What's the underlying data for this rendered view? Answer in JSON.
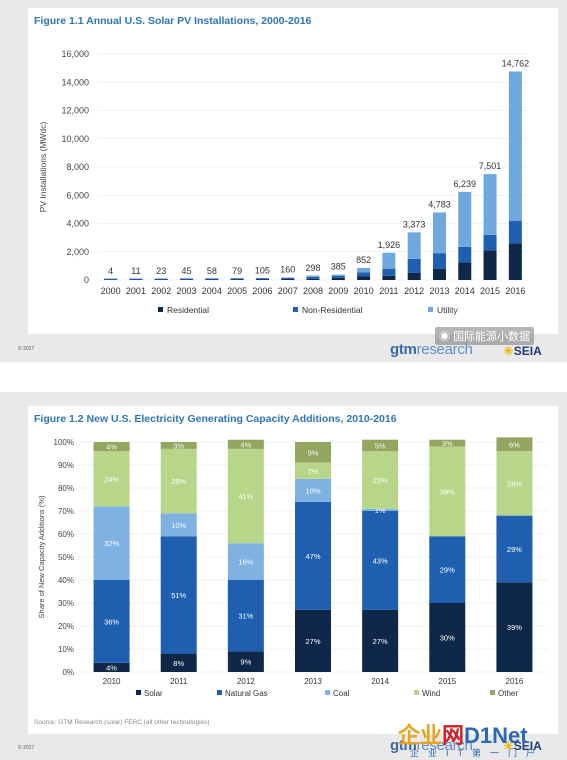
{
  "colors": {
    "residential": "#0f2748",
    "non_residential": "#1f5fb0",
    "utility": "#6fa8dc",
    "solar": "#0f2748",
    "natural_gas": "#1f5fb0",
    "coal": "#7fb2e0",
    "wind": "#b8d68a",
    "other": "#93a55f",
    "title_blue": "#2e75b6"
  },
  "figure1": {
    "title": "Figure 1.1 Annual U.S. Solar PV Installations, 2000-2016",
    "copyright": "© 2017",
    "legend": [
      "Residential",
      "Non-Residential",
      "Utility"
    ]
  },
  "figure2": {
    "title": "Figure 1.2  New U.S. Electricity Generating Capacity Additions, 2010-2016",
    "source": "Source: GTM Research (solar) FERC (all other technologies)",
    "copyright": "© 2017",
    "legend": [
      "Solar",
      "Natural Gas",
      "Coal",
      "Wind",
      "Other"
    ]
  },
  "logos": {
    "gtm_bold": "gtm",
    "gtm_thin": "research",
    "seia": "SEIA"
  },
  "watermarks": {
    "weibo": "国际能源小数据",
    "brand_a": "企业",
    "brand_b": "网",
    "brand_c": "D1Net",
    "brand_sub": "企业IT第一门户"
  },
  "chart_data": [
    {
      "type": "bar",
      "stacked": true,
      "title": "Figure 1.1 Annual U.S. Solar PV Installations, 2000-2016",
      "ylabel": "PV Installations (MWdc)",
      "xlabel": "",
      "ylim": [
        0,
        16000
      ],
      "yticks": [
        "0",
        "2,000",
        "4,000",
        "6,000",
        "8,000",
        "10,000",
        "12,000",
        "14,000",
        "16,000"
      ],
      "grid": true,
      "legend_position": "bottom",
      "categories": [
        "2000",
        "2001",
        "2002",
        "2003",
        "2004",
        "2005",
        "2006",
        "2007",
        "2008",
        "2009",
        "2010",
        "2011",
        "2012",
        "2013",
        "2014",
        "2015",
        "2016"
      ],
      "totals": [
        4,
        11,
        23,
        45,
        58,
        79,
        105,
        160,
        298,
        385,
        852,
        1926,
        3373,
        4783,
        6239,
        7501,
        14762
      ],
      "total_labels": [
        "4",
        "11",
        "23",
        "45",
        "58",
        "79",
        "105",
        "160",
        "298",
        "385",
        "852",
        "1,926",
        "3,373",
        "4,783",
        "6,239",
        "7,501",
        "14,762"
      ],
      "series": [
        {
          "name": "Residential",
          "values": [
            2,
            5,
            10,
            20,
            25,
            35,
            45,
            60,
            80,
            150,
            250,
            300,
            500,
            800,
            1250,
            2100,
            2600
          ]
        },
        {
          "name": "Non-Residential",
          "values": [
            2,
            6,
            13,
            25,
            33,
            44,
            60,
            100,
            150,
            150,
            300,
            500,
            1000,
            1100,
            1100,
            1100,
            1600
          ]
        },
        {
          "name": "Utility",
          "values": [
            0,
            0,
            0,
            0,
            0,
            0,
            0,
            0,
            68,
            85,
            302,
            1126,
            1873,
            2883,
            3889,
            4301,
            10562
          ]
        }
      ]
    },
    {
      "type": "bar",
      "stacked": true,
      "percent": true,
      "title": "Figure 1.2  New U.S. Electricity Generating Capacity Additions, 2010-2016",
      "ylabel": "Share of New Capacity Additions (%)",
      "xlabel": "",
      "ylim": [
        0,
        100
      ],
      "yticks": [
        "0%",
        "10%",
        "20%",
        "30%",
        "40%",
        "50%",
        "60%",
        "70%",
        "80%",
        "90%",
        "100%"
      ],
      "grid": true,
      "legend_position": "bottom",
      "categories": [
        "2010",
        "2011",
        "2012",
        "2013",
        "2014",
        "2015",
        "2016"
      ],
      "series": [
        {
          "name": "Solar",
          "values": [
            4,
            8,
            9,
            27,
            27,
            30,
            39
          ],
          "labels": [
            "4%",
            "8%",
            "9%",
            "27%",
            "27%",
            "30%",
            "39%"
          ]
        },
        {
          "name": "Natural Gas",
          "values": [
            36,
            51,
            31,
            47,
            43,
            29,
            29
          ],
          "labels": [
            "36%",
            "51%",
            "31%",
            "47%",
            "43%",
            "29%",
            "29%"
          ]
        },
        {
          "name": "Coal",
          "values": [
            32,
            10,
            16,
            10,
            1,
            0,
            0
          ],
          "labels": [
            "32%",
            "10%",
            "16%",
            "10%",
            "1%",
            "",
            ""
          ]
        },
        {
          "name": "Wind",
          "values": [
            24,
            28,
            41,
            7,
            25,
            39,
            28
          ],
          "labels": [
            "24%",
            "28%",
            "41%",
            "7%",
            "25%",
            "39%",
            "28%"
          ]
        },
        {
          "name": "Other",
          "values": [
            4,
            3,
            4,
            9,
            5,
            3,
            6
          ],
          "labels": [
            "4%",
            "3%",
            "4%",
            "9%",
            "5%",
            "3%",
            "6%"
          ]
        }
      ]
    }
  ]
}
